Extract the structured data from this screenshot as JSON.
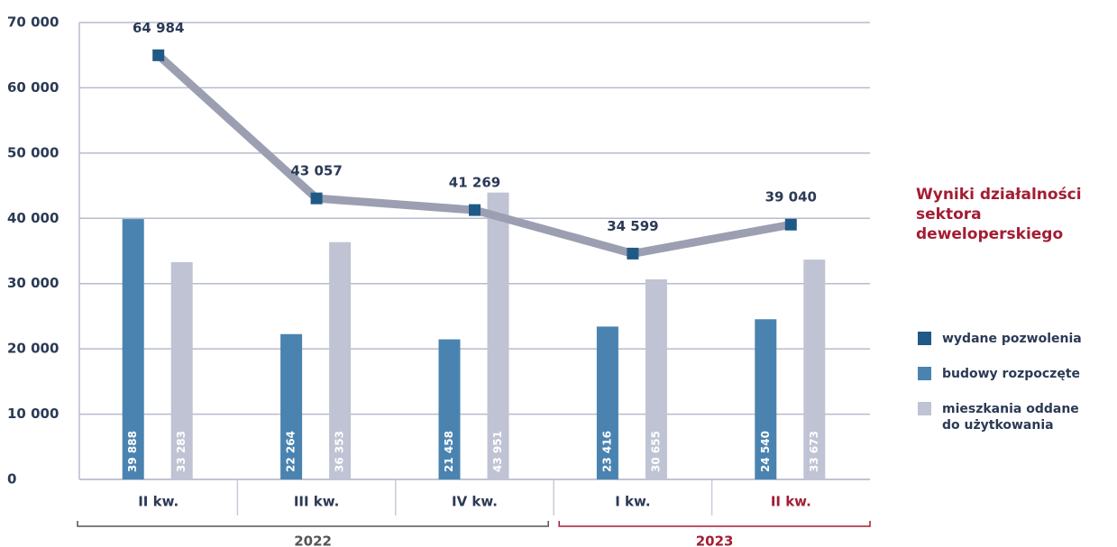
{
  "chart_data": {
    "type": "bar",
    "title": "Wyniki działalności sektora deweloperskiego",
    "title_color": "#a31d33",
    "categories": [
      "II kw.",
      "III kw.",
      "IV kw.",
      "I kw.",
      "II kw."
    ],
    "category_colors": [
      "#2b3a55",
      "#2b3a55",
      "#2b3a55",
      "#2b3a55",
      "#a31d33"
    ],
    "groups": [
      {
        "label": "2022",
        "span": 3,
        "color": "#555555"
      },
      {
        "label": "2023",
        "span": 2,
        "color": "#a31d33"
      }
    ],
    "series": [
      {
        "name": "wydane pozwolenia",
        "type": "line",
        "color": "#1f5a87",
        "line_color": "#9c9eb2",
        "values": [
          64984,
          43057,
          41269,
          34599,
          39040
        ],
        "value_labels": [
          "64 984",
          "43 057",
          "41 269",
          "34 599",
          "39 040"
        ]
      },
      {
        "name": "budowy rozpoczęte",
        "type": "bar",
        "color": "#4a83b0",
        "values": [
          39888,
          22264,
          21458,
          23416,
          24540
        ],
        "value_labels": [
          "39 888",
          "22 264",
          "21 458",
          "23 416",
          "24 540"
        ]
      },
      {
        "name": "mieszkania oddane do użytkowania",
        "type": "bar",
        "color": "#bfc3d3",
        "values": [
          33283,
          36353,
          43951,
          30655,
          33673
        ],
        "value_labels": [
          "33 283",
          "36 353",
          "43 951",
          "30 655",
          "33 673"
        ]
      }
    ],
    "ylim": [
      0,
      70000
    ],
    "yticks": [
      0,
      {
        "value": 10000,
        "label": "10 000"
      },
      {
        "value": 20000,
        "label": "20 000"
      },
      {
        "value": 30000,
        "label": "30 000"
      },
      {
        "value": 40000,
        "label": "40 000"
      },
      {
        "value": 50000,
        "label": "50 000"
      },
      {
        "value": 60000,
        "label": "60 000"
      },
      {
        "value": 70000,
        "label": "70 000"
      }
    ],
    "grid": true,
    "legend": "right"
  }
}
